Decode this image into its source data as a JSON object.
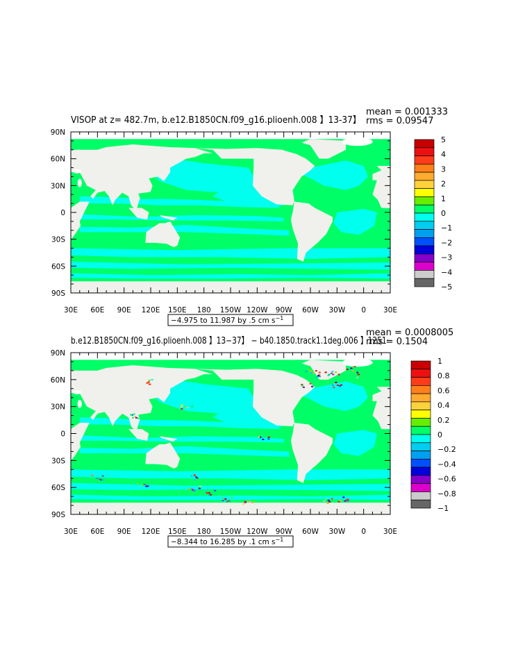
{
  "colors": {
    "land": "#ffffff",
    "ocean_zero_band": "#00ff66",
    "ocean_negative_band": "#00ffee",
    "frame": "#000000"
  },
  "chart_data": [
    {
      "type": "heatmap",
      "title": "VISOP at z= 482.7m, b.e12.B1850CN.f09_g16.plioenh.008 】13-37】",
      "mean_text": "mean = 0.001333",
      "rms_text": "rms = 0.09547",
      "xlim": [
        30,
        390
      ],
      "ylim": [
        -90,
        90
      ],
      "x_tick_labels": [
        "30E",
        "60E",
        "90E",
        "120E",
        "150E",
        "180",
        "150W",
        "120W",
        "90W",
        "60W",
        "30W",
        "0",
        "30E"
      ],
      "y_tick_labels": [
        "90N",
        "60N",
        "30N",
        "0",
        "30S",
        "60S",
        "90S"
      ],
      "colorbar_labels": [
        "5",
        "4",
        "3",
        "2",
        "1",
        "0",
        "−1",
        "−2",
        "−3",
        "−4",
        "−5"
      ],
      "colorbar_colors": [
        "#c80000",
        "#ee1010",
        "#ff3c1a",
        "#ff7f1a",
        "#ffaa30",
        "#ffd23c",
        "#ffff00",
        "#66ee00",
        "#00ff66",
        "#00ffee",
        "#00cdf0",
        "#00a0f0",
        "#0050ff",
        "#0000dd",
        "#8800cc",
        "#dd00cc",
        "#cccccc",
        "#666666"
      ],
      "range_text": "−4.975 to 11.987 by .5 cm s",
      "range_unit_sup": "−1"
    },
    {
      "type": "heatmap",
      "title": "b.e12.B1850CN.f09_g16.plioenh.008 】13−37】 − b40.1850.track1.1deg.006 】1251·",
      "mean_text": "mean = 0.0008005",
      "rms_text": "rms = 0.1504",
      "xlim": [
        30,
        390
      ],
      "ylim": [
        -90,
        90
      ],
      "x_tick_labels": [
        "30E",
        "60E",
        "90E",
        "120E",
        "150E",
        "180",
        "150W",
        "120W",
        "90W",
        "60W",
        "30W",
        "0",
        "30E"
      ],
      "y_tick_labels": [
        "90N",
        "60N",
        "30N",
        "0",
        "30S",
        "60S",
        "90S"
      ],
      "colorbar_labels": [
        "1",
        "0.8",
        "0.6",
        "0.4",
        "0.2",
        "0",
        "−0.2",
        "−0.4",
        "−0.6",
        "−0.8",
        "−1"
      ],
      "colorbar_colors": [
        "#c80000",
        "#ee1010",
        "#ff3c1a",
        "#ff7f1a",
        "#ffaa30",
        "#ffd23c",
        "#ffff00",
        "#66ee00",
        "#00ff66",
        "#00ffee",
        "#00cdf0",
        "#00a0f0",
        "#0050ff",
        "#0000dd",
        "#8800cc",
        "#dd00cc",
        "#cccccc",
        "#666666"
      ],
      "range_text": "−8.344 to 16.285 by .1 cm s",
      "range_unit_sup": "−1"
    }
  ]
}
